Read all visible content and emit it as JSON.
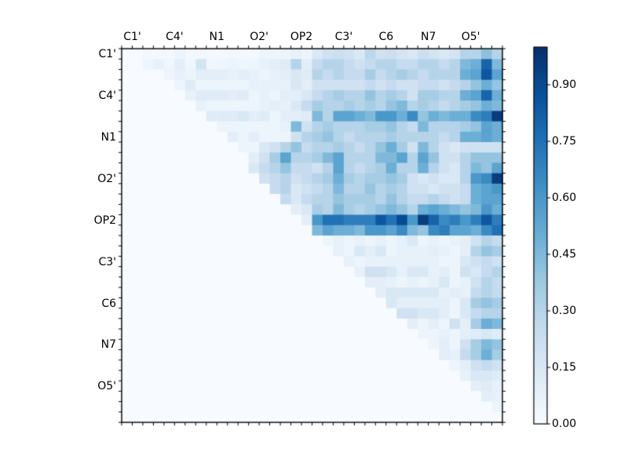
{
  "chart_data": {
    "type": "heatmap",
    "title": "",
    "description": "Upper-triangular 36x36 pairwise matrix heatmap, Blues colormap, axis tick labels on top and left, colorbar on right",
    "n_rows": 36,
    "n_cols": 36,
    "cells_per_label_block": 4,
    "x_axis": {
      "side": "top",
      "tick_labels": [
        "C1'",
        "C4'",
        "N1",
        "O2'",
        "OP2",
        "C3'",
        "C6",
        "N7",
        "O5'"
      ]
    },
    "y_axis": {
      "side": "left",
      "tick_labels": [
        "C1'",
        "C4'",
        "N1",
        "O2'",
        "OP2",
        "C3'",
        "C6",
        "N7",
        "O5'"
      ]
    },
    "colormap": "Blues",
    "colormap_stops_rgb": [
      [
        247,
        251,
        255
      ],
      [
        222,
        235,
        247
      ],
      [
        198,
        219,
        239
      ],
      [
        158,
        202,
        225
      ],
      [
        107,
        174,
        214
      ],
      [
        66,
        146,
        198
      ],
      [
        33,
        113,
        181
      ],
      [
        8,
        81,
        156
      ],
      [
        8,
        48,
        107
      ]
    ],
    "colorbar": {
      "min": 0.0,
      "max": 1.0,
      "tick_values": [
        0.0,
        0.15,
        0.3,
        0.45,
        0.6,
        0.75,
        0.9
      ],
      "tick_labels": [
        "0.00",
        "0.15",
        "0.30",
        "0.45",
        "0.60",
        "0.75",
        "0.90"
      ]
    },
    "grid_on": false,
    "matrix": [
      [
        0,
        0,
        0.02,
        0.02,
        0.02,
        0.05,
        0.02,
        0.03,
        0.02,
        0.02,
        0.03,
        0.02,
        0.02,
        0.05,
        0.05,
        0.05,
        0.08,
        0.05,
        0.15,
        0.2,
        0.22,
        0.2,
        0.15,
        0.28,
        0.2,
        0.22,
        0.18,
        0.15,
        0.22,
        0.18,
        0.15,
        0.18,
        0.3,
        0.3,
        0.42,
        0.3
      ],
      [
        0,
        0,
        0.05,
        0.08,
        0.04,
        0.1,
        0.04,
        0.18,
        0.04,
        0.05,
        0.06,
        0.05,
        0.05,
        0.08,
        0.1,
        0.12,
        0.3,
        0.1,
        0.25,
        0.3,
        0.3,
        0.25,
        0.2,
        0.25,
        0.3,
        0.3,
        0.25,
        0.25,
        0.3,
        0.3,
        0.25,
        0.3,
        0.45,
        0.5,
        0.8,
        0.45
      ],
      [
        0,
        0,
        0,
        0,
        0.05,
        0.08,
        0.05,
        0.1,
        0.1,
        0.1,
        0.08,
        0.1,
        0.08,
        0.05,
        0.08,
        0.1,
        0.15,
        0.12,
        0.3,
        0.25,
        0.3,
        0.25,
        0.25,
        0.35,
        0.25,
        0.3,
        0.35,
        0.3,
        0.25,
        0.3,
        0.3,
        0.3,
        0.5,
        0.55,
        0.85,
        0.55
      ],
      [
        0,
        0,
        0,
        0,
        0,
        0.05,
        0.12,
        0.05,
        0.05,
        0.05,
        0.05,
        0.05,
        0.08,
        0.08,
        0.08,
        0.08,
        0.15,
        0.1,
        0.2,
        0.2,
        0.2,
        0.2,
        0.2,
        0.25,
        0.2,
        0.25,
        0.2,
        0.2,
        0.25,
        0.25,
        0.2,
        0.25,
        0.3,
        0.4,
        0.5,
        0.4
      ],
      [
        0,
        0,
        0,
        0,
        0,
        0,
        0.08,
        0.12,
        0.12,
        0.12,
        0.1,
        0.12,
        0.05,
        0.08,
        0.05,
        0.1,
        0.1,
        0.15,
        0.25,
        0.3,
        0.35,
        0.3,
        0.3,
        0.4,
        0.3,
        0.35,
        0.3,
        0.2,
        0.35,
        0.35,
        0.3,
        0.3,
        0.5,
        0.55,
        0.8,
        0.5
      ],
      [
        0,
        0,
        0,
        0,
        0,
        0,
        0,
        0.08,
        0.05,
        0.05,
        0.05,
        0.05,
        0.05,
        0.08,
        0.1,
        0.08,
        0.15,
        0.25,
        0.35,
        0.3,
        0.3,
        0.35,
        0.3,
        0.35,
        0.3,
        0.4,
        0.45,
        0.3,
        0.35,
        0.3,
        0.25,
        0.3,
        0.35,
        0.4,
        0.5,
        0.45
      ],
      [
        0,
        0,
        0,
        0,
        0,
        0,
        0,
        0,
        0.12,
        0.12,
        0.12,
        0.15,
        0.1,
        0.12,
        0.05,
        0.1,
        0.1,
        0.12,
        0.45,
        0.3,
        0.55,
        0.55,
        0.5,
        0.45,
        0.6,
        0.6,
        0.5,
        0.65,
        0.4,
        0.5,
        0.45,
        0.5,
        0.5,
        0.65,
        0.7,
        0.95
      ],
      [
        0,
        0,
        0,
        0,
        0,
        0,
        0,
        0,
        0,
        0.05,
        0.05,
        0.05,
        0.05,
        0.05,
        0.05,
        0.08,
        0.45,
        0.2,
        0.3,
        0.35,
        0.3,
        0.3,
        0.3,
        0.35,
        0.35,
        0.4,
        0.3,
        0.25,
        0.45,
        0.3,
        0.3,
        0.3,
        0.35,
        0.4,
        0.55,
        0.5
      ],
      [
        0,
        0,
        0,
        0,
        0,
        0,
        0,
        0,
        0,
        0,
        0.1,
        0.05,
        0.1,
        0.05,
        0.05,
        0.05,
        0.2,
        0.3,
        0.35,
        0.4,
        0.3,
        0.25,
        0.3,
        0.3,
        0.3,
        0.35,
        0.3,
        0.3,
        0.3,
        0.3,
        0.25,
        0.3,
        0.5,
        0.5,
        0.55,
        0.5
      ],
      [
        0,
        0,
        0,
        0,
        0,
        0,
        0,
        0,
        0,
        0,
        0,
        0.05,
        0.05,
        0.15,
        0.2,
        0.3,
        0.4,
        0.25,
        0.3,
        0.3,
        0.35,
        0.3,
        0.25,
        0.3,
        0.4,
        0.5,
        0.35,
        0.2,
        0.45,
        0.3,
        0.2,
        0.15,
        0.2,
        0.2,
        0.2,
        0.2
      ],
      [
        0,
        0,
        0,
        0,
        0,
        0,
        0,
        0,
        0,
        0,
        0,
        0,
        0.1,
        0.2,
        0.35,
        0.55,
        0.3,
        0.3,
        0.35,
        0.45,
        0.55,
        0.3,
        0.3,
        0.3,
        0.45,
        0.45,
        0.55,
        0.3,
        0.55,
        0.4,
        0.2,
        0.2,
        0.3,
        0.4,
        0.4,
        0.4
      ],
      [
        0,
        0,
        0,
        0,
        0,
        0,
        0,
        0,
        0,
        0,
        0,
        0,
        0.15,
        0.25,
        0.3,
        0.4,
        0.25,
        0.25,
        0.2,
        0.3,
        0.55,
        0.3,
        0.25,
        0.3,
        0.35,
        0.5,
        0.3,
        0.3,
        0.5,
        0.3,
        0.2,
        0.15,
        0.3,
        0.45,
        0.4,
        0.55
      ],
      [
        0,
        0,
        0,
        0,
        0,
        0,
        0,
        0,
        0,
        0,
        0,
        0,
        0,
        0.2,
        0.25,
        0.3,
        0.2,
        0.25,
        0.3,
        0.35,
        0.5,
        0.35,
        0.3,
        0.35,
        0.35,
        0.4,
        0.35,
        0.2,
        0.15,
        0.2,
        0.15,
        0.15,
        0.3,
        0.6,
        0.65,
        0.95
      ],
      [
        0,
        0,
        0,
        0,
        0,
        0,
        0,
        0,
        0,
        0,
        0,
        0,
        0,
        0,
        0.25,
        0.3,
        0.15,
        0.2,
        0.25,
        0.3,
        0.45,
        0.3,
        0.3,
        0.4,
        0.3,
        0.35,
        0.3,
        0.2,
        0.2,
        0.15,
        0.2,
        0.2,
        0.25,
        0.5,
        0.55,
        0.6
      ],
      [
        0,
        0,
        0,
        0,
        0,
        0,
        0,
        0,
        0,
        0,
        0,
        0,
        0,
        0,
        0,
        0.25,
        0.15,
        0.25,
        0.3,
        0.3,
        0.4,
        0.35,
        0.35,
        0.35,
        0.3,
        0.4,
        0.3,
        0.25,
        0.25,
        0.3,
        0.25,
        0.2,
        0.25,
        0.5,
        0.55,
        0.55
      ],
      [
        0,
        0,
        0,
        0,
        0,
        0,
        0,
        0,
        0,
        0,
        0,
        0,
        0,
        0,
        0,
        0,
        0.1,
        0.15,
        0.35,
        0.3,
        0.45,
        0.35,
        0.3,
        0.35,
        0.4,
        0.45,
        0.4,
        0.3,
        0.5,
        0.55,
        0.5,
        0.45,
        0.4,
        0.45,
        0.6,
        0.5
      ],
      [
        0,
        0,
        0,
        0,
        0,
        0,
        0,
        0,
        0,
        0,
        0,
        0,
        0,
        0,
        0,
        0,
        0,
        0.1,
        0.6,
        0.75,
        0.75,
        0.7,
        0.7,
        0.7,
        0.85,
        0.75,
        0.9,
        0.6,
        0.95,
        0.8,
        0.65,
        0.7,
        0.6,
        0.7,
        0.85,
        0.7
      ],
      [
        0,
        0,
        0,
        0,
        0,
        0,
        0,
        0,
        0,
        0,
        0,
        0,
        0,
        0,
        0,
        0,
        0,
        0,
        0.45,
        0.55,
        0.5,
        0.5,
        0.45,
        0.6,
        0.6,
        0.55,
        0.65,
        0.45,
        0.4,
        0.65,
        0.7,
        0.55,
        0.55,
        0.5,
        0.65,
        0.75
      ],
      [
        0,
        0,
        0,
        0,
        0,
        0,
        0,
        0,
        0,
        0,
        0,
        0,
        0,
        0,
        0,
        0,
        0,
        0,
        0,
        0.05,
        0.08,
        0.05,
        0.08,
        0.05,
        0.08,
        0.05,
        0.08,
        0.15,
        0.05,
        0.08,
        0.05,
        0.08,
        0.1,
        0.2,
        0.3,
        0.25
      ],
      [
        0,
        0,
        0,
        0,
        0,
        0,
        0,
        0,
        0,
        0,
        0,
        0,
        0,
        0,
        0,
        0,
        0,
        0,
        0,
        0,
        0.08,
        0.05,
        0.15,
        0.1,
        0.15,
        0.05,
        0.08,
        0.08,
        0.08,
        0.1,
        0.08,
        0.05,
        0.1,
        0.3,
        0.4,
        0.35
      ],
      [
        0,
        0,
        0,
        0,
        0,
        0,
        0,
        0,
        0,
        0,
        0,
        0,
        0,
        0,
        0,
        0,
        0,
        0,
        0,
        0,
        0,
        0.08,
        0.05,
        0.08,
        0.08,
        0.08,
        0.08,
        0.08,
        0.08,
        0.08,
        0.05,
        0.05,
        0.15,
        0.2,
        0.25,
        0.2
      ],
      [
        0,
        0,
        0,
        0,
        0,
        0,
        0,
        0,
        0,
        0,
        0,
        0,
        0,
        0,
        0,
        0,
        0,
        0,
        0,
        0,
        0,
        0,
        0.08,
        0.2,
        0.2,
        0.15,
        0.08,
        0.15,
        0.15,
        0.08,
        0.1,
        0.05,
        0.2,
        0.15,
        0.25,
        0.3
      ],
      [
        0,
        0,
        0,
        0,
        0,
        0,
        0,
        0,
        0,
        0,
        0,
        0,
        0,
        0,
        0,
        0,
        0,
        0,
        0,
        0,
        0,
        0,
        0,
        0.1,
        0.1,
        0.08,
        0.05,
        0.08,
        0.05,
        0.08,
        0.15,
        0.05,
        0.08,
        0.2,
        0.3,
        0.25
      ],
      [
        0,
        0,
        0,
        0,
        0,
        0,
        0,
        0,
        0,
        0,
        0,
        0,
        0,
        0,
        0,
        0,
        0,
        0,
        0,
        0,
        0,
        0,
        0,
        0,
        0.1,
        0.15,
        0.15,
        0.15,
        0.15,
        0.15,
        0.08,
        0.1,
        0.08,
        0.25,
        0.3,
        0.25
      ],
      [
        0,
        0,
        0,
        0,
        0,
        0,
        0,
        0,
        0,
        0,
        0,
        0,
        0,
        0,
        0,
        0,
        0,
        0,
        0,
        0,
        0,
        0,
        0,
        0,
        0,
        0.15,
        0.1,
        0.1,
        0.1,
        0.1,
        0.1,
        0.05,
        0.15,
        0.35,
        0.4,
        0.35
      ],
      [
        0,
        0,
        0,
        0,
        0,
        0,
        0,
        0,
        0,
        0,
        0,
        0,
        0,
        0,
        0,
        0,
        0,
        0,
        0,
        0,
        0,
        0,
        0,
        0,
        0,
        0,
        0.2,
        0.2,
        0.15,
        0.15,
        0.1,
        0.05,
        0.15,
        0.25,
        0.3,
        0.3
      ],
      [
        0,
        0,
        0,
        0,
        0,
        0,
        0,
        0,
        0,
        0,
        0,
        0,
        0,
        0,
        0,
        0,
        0,
        0,
        0,
        0,
        0,
        0,
        0,
        0,
        0,
        0,
        0,
        0.1,
        0.05,
        0.1,
        0.05,
        0.2,
        0.1,
        0.35,
        0.5,
        0.45
      ],
      [
        0,
        0,
        0,
        0,
        0,
        0,
        0,
        0,
        0,
        0,
        0,
        0,
        0,
        0,
        0,
        0,
        0,
        0,
        0,
        0,
        0,
        0,
        0,
        0,
        0,
        0,
        0,
        0,
        0.05,
        0.05,
        0.08,
        0.05,
        0.1,
        0.12,
        0.15,
        0.12
      ],
      [
        0,
        0,
        0,
        0,
        0,
        0,
        0,
        0,
        0,
        0,
        0,
        0,
        0,
        0,
        0,
        0,
        0,
        0,
        0,
        0,
        0,
        0,
        0,
        0,
        0,
        0,
        0,
        0,
        0,
        0.05,
        0.1,
        0.05,
        0.2,
        0.35,
        0.45,
        0.4
      ],
      [
        0,
        0,
        0,
        0,
        0,
        0,
        0,
        0,
        0,
        0,
        0,
        0,
        0,
        0,
        0,
        0,
        0,
        0,
        0,
        0,
        0,
        0,
        0,
        0,
        0,
        0,
        0,
        0,
        0,
        0,
        0.1,
        0.08,
        0.25,
        0.35,
        0.5,
        0.35
      ],
      [
        0,
        0,
        0,
        0,
        0,
        0,
        0,
        0,
        0,
        0,
        0,
        0,
        0,
        0,
        0,
        0,
        0,
        0,
        0,
        0,
        0,
        0,
        0,
        0,
        0,
        0,
        0,
        0,
        0,
        0,
        0,
        0.05,
        0.1,
        0.2,
        0.25,
        0.2
      ],
      [
        0,
        0,
        0,
        0,
        0,
        0,
        0,
        0,
        0,
        0,
        0,
        0,
        0,
        0,
        0,
        0,
        0,
        0,
        0,
        0,
        0,
        0,
        0,
        0,
        0,
        0,
        0,
        0,
        0,
        0,
        0,
        0,
        0.08,
        0.15,
        0.15,
        0.12
      ],
      [
        0,
        0,
        0,
        0,
        0,
        0,
        0,
        0,
        0,
        0,
        0,
        0,
        0,
        0,
        0,
        0,
        0,
        0,
        0,
        0,
        0,
        0,
        0,
        0,
        0,
        0,
        0,
        0,
        0,
        0,
        0,
        0,
        0,
        0.1,
        0.12,
        0.08
      ],
      [
        0,
        0,
        0,
        0,
        0,
        0,
        0,
        0,
        0,
        0,
        0,
        0,
        0,
        0,
        0,
        0,
        0,
        0,
        0,
        0,
        0,
        0,
        0,
        0,
        0,
        0,
        0,
        0,
        0,
        0,
        0,
        0,
        0,
        0,
        0.1,
        0.08
      ],
      [
        0,
        0,
        0,
        0,
        0,
        0,
        0,
        0,
        0,
        0,
        0,
        0,
        0,
        0,
        0,
        0,
        0,
        0,
        0,
        0,
        0,
        0,
        0,
        0,
        0,
        0,
        0,
        0,
        0,
        0,
        0,
        0,
        0,
        0,
        0,
        0.05
      ],
      [
        0,
        0,
        0,
        0,
        0,
        0,
        0,
        0,
        0,
        0,
        0,
        0,
        0,
        0,
        0,
        0,
        0,
        0,
        0,
        0,
        0,
        0,
        0,
        0,
        0,
        0,
        0,
        0,
        0,
        0,
        0,
        0,
        0,
        0,
        0,
        0
      ]
    ]
  }
}
